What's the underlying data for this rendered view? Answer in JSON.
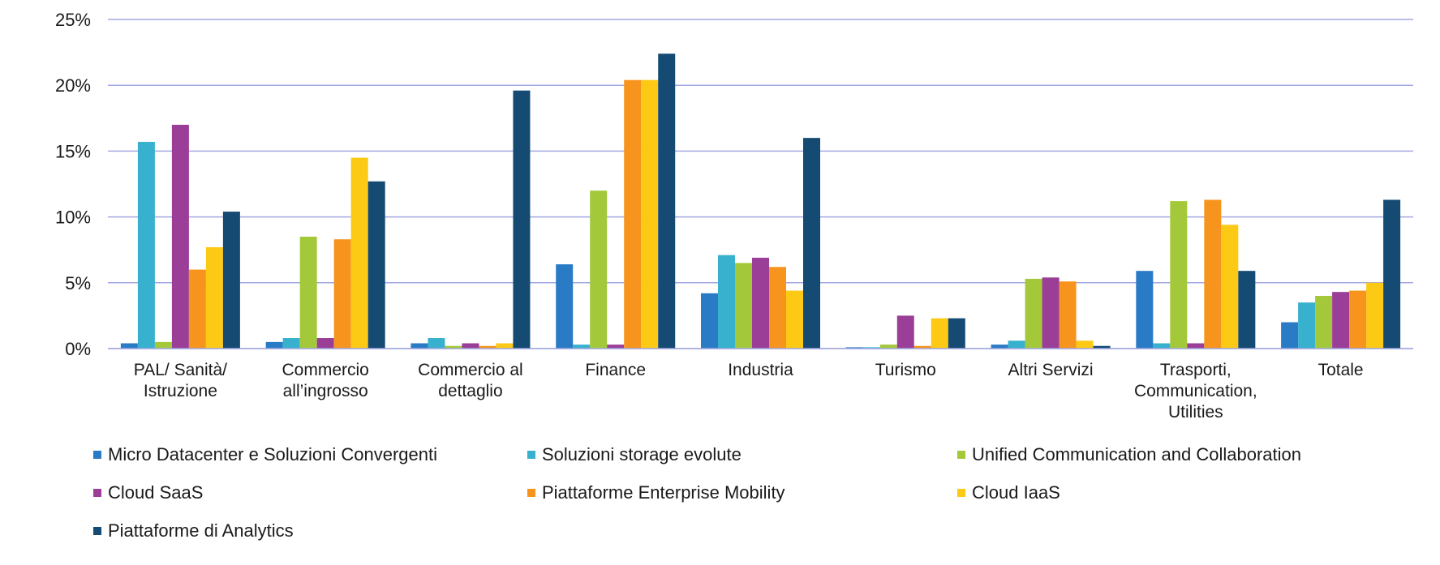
{
  "chart_data": {
    "type": "bar",
    "categories": [
      [
        "PAL/ Sanità/",
        "Istruzione"
      ],
      [
        "Commercio",
        "all’ingrosso"
      ],
      [
        "Commercio al",
        "dettaglio"
      ],
      [
        "Finance"
      ],
      [
        "Industria"
      ],
      [
        "Turismo"
      ],
      [
        "Altri Servizi"
      ],
      [
        "Trasporti,",
        "Communication,",
        "Utilities"
      ],
      [
        "Totale"
      ]
    ],
    "y_ticks": [
      "0%",
      "5%",
      "10%",
      "15%",
      "20%",
      "25%"
    ],
    "ylim": [
      0,
      25
    ],
    "grid": true,
    "legend_position": "bottom",
    "series": [
      {
        "name": "Micro Datacenter e Soluzioni Convergenti",
        "color": "#2a7bc5",
        "values": [
          0.4,
          0.5,
          0.4,
          6.4,
          4.2,
          0.1,
          0.3,
          5.9,
          2.0
        ]
      },
      {
        "name": "Soluzioni storage evolute",
        "color": "#38b1ce",
        "values": [
          15.7,
          0.8,
          0.8,
          0.3,
          7.1,
          0.1,
          0.6,
          0.4,
          3.5
        ]
      },
      {
        "name": "Unified Communication and Collaboration",
        "color": "#a3c93a",
        "values": [
          0.5,
          8.5,
          0.2,
          12.0,
          6.5,
          0.3,
          5.3,
          11.2,
          4.0
        ]
      },
      {
        "name": "Cloud SaaS",
        "color": "#9b3e97",
        "values": [
          17.0,
          0.8,
          0.4,
          0.3,
          6.9,
          2.5,
          5.4,
          0.4,
          4.3
        ]
      },
      {
        "name": "Piattaforme Enterprise Mobility",
        "color": "#f6941e",
        "values": [
          6.0,
          8.3,
          0.2,
          20.4,
          6.2,
          0.2,
          5.1,
          11.3,
          4.4
        ]
      },
      {
        "name": "Cloud IaaS",
        "color": "#fcc915",
        "values": [
          7.7,
          14.5,
          0.4,
          20.4,
          4.4,
          2.3,
          0.6,
          9.4,
          5.0
        ]
      },
      {
        "name": "Piattaforme di Analytics",
        "color": "#154a73",
        "values": [
          10.4,
          12.7,
          19.6,
          22.4,
          16.0,
          2.3,
          0.2,
          5.9,
          11.3
        ]
      }
    ]
  }
}
